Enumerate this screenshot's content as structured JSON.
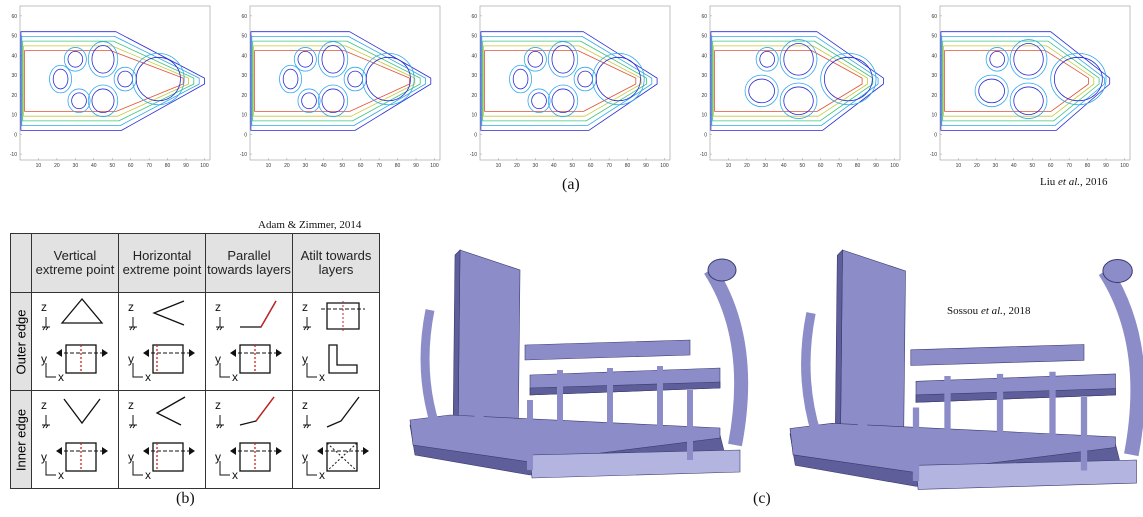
{
  "figure": {
    "panel_a": {
      "label": "(a)",
      "citation": {
        "author": "Liu",
        "etal": "et al.",
        "year": ", 2016"
      },
      "plot_axes": {
        "xlim": [
          0,
          103
        ],
        "ylim": [
          -13,
          65
        ],
        "xticks": [
          10,
          20,
          30,
          40,
          50,
          60,
          70,
          80,
          90,
          100
        ],
        "yticks": [
          60,
          50,
          40,
          30,
          20,
          10,
          0,
          -10
        ]
      }
    },
    "panel_b": {
      "label": "(b)",
      "citation": "Adam & Zimmer, 2014",
      "columns": [
        "Vertical extreme point",
        "Horizontal extreme point",
        "Parallel towards layers",
        "Atilt towards layers"
      ],
      "rows": [
        "Outer edge",
        "Inner edge"
      ],
      "axis_letters": {
        "z": "z",
        "y": "y",
        "x": "x"
      }
    },
    "panel_c": {
      "label": "(c)",
      "citation": {
        "author": "Sossou",
        "etal": "et al.",
        "year": ", 2018"
      }
    }
  }
}
